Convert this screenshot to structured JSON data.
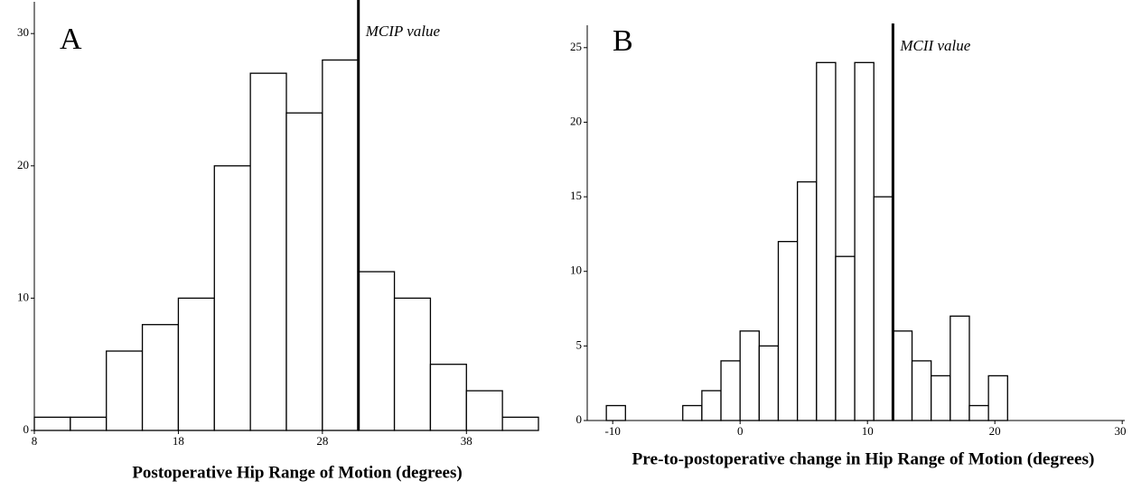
{
  "chart_data": [
    {
      "type": "histogram",
      "panel_label": "A",
      "xlabel": "Postoperative Hip Range of Motion (degrees)",
      "bins": [
        8,
        10.5,
        13,
        15.5,
        18,
        20.5,
        23,
        25.5,
        28,
        30.5,
        33,
        35.5,
        38,
        40.5,
        43
      ],
      "values": [
        1,
        1,
        6,
        8,
        10,
        20,
        27,
        24,
        28,
        12,
        10,
        5,
        3,
        1
      ],
      "color": "#ffffff",
      "edgecolor": "#000000",
      "xlim": [
        8,
        43
      ],
      "xticks": [
        8,
        18,
        28,
        38
      ],
      "ylim": [
        0,
        32.4
      ],
      "yticks": [
        0,
        10,
        20,
        30
      ],
      "reference_line": {
        "x": 30.5,
        "label": "MCIP value"
      }
    },
    {
      "type": "histogram",
      "panel_label": "B",
      "xlabel": "Pre-to-postoperative change in Hip Range of Motion (degrees)",
      "bins": [
        -10.5,
        -9,
        -7.5,
        -6,
        -4.5,
        -3,
        -1.5,
        0,
        1.5,
        3,
        4.5,
        6,
        7.5,
        9,
        10.5,
        12,
        13.5,
        15,
        16.5,
        18,
        19.5,
        21
      ],
      "values": [
        1,
        0,
        0,
        0,
        1,
        2,
        4,
        6,
        5,
        12,
        16,
        24,
        11,
        24,
        15,
        6,
        4,
        3,
        7,
        1,
        3
      ],
      "color": "#ffffff",
      "edgecolor": "#000000",
      "xlim": [
        -12,
        30.2
      ],
      "xticks": [
        -10,
        0,
        10,
        20,
        30
      ],
      "ylim": [
        0,
        26.5
      ],
      "yticks": [
        0,
        5,
        10,
        15,
        20,
        25
      ],
      "reference_line": {
        "x": 12,
        "label": "MCII value"
      }
    }
  ]
}
